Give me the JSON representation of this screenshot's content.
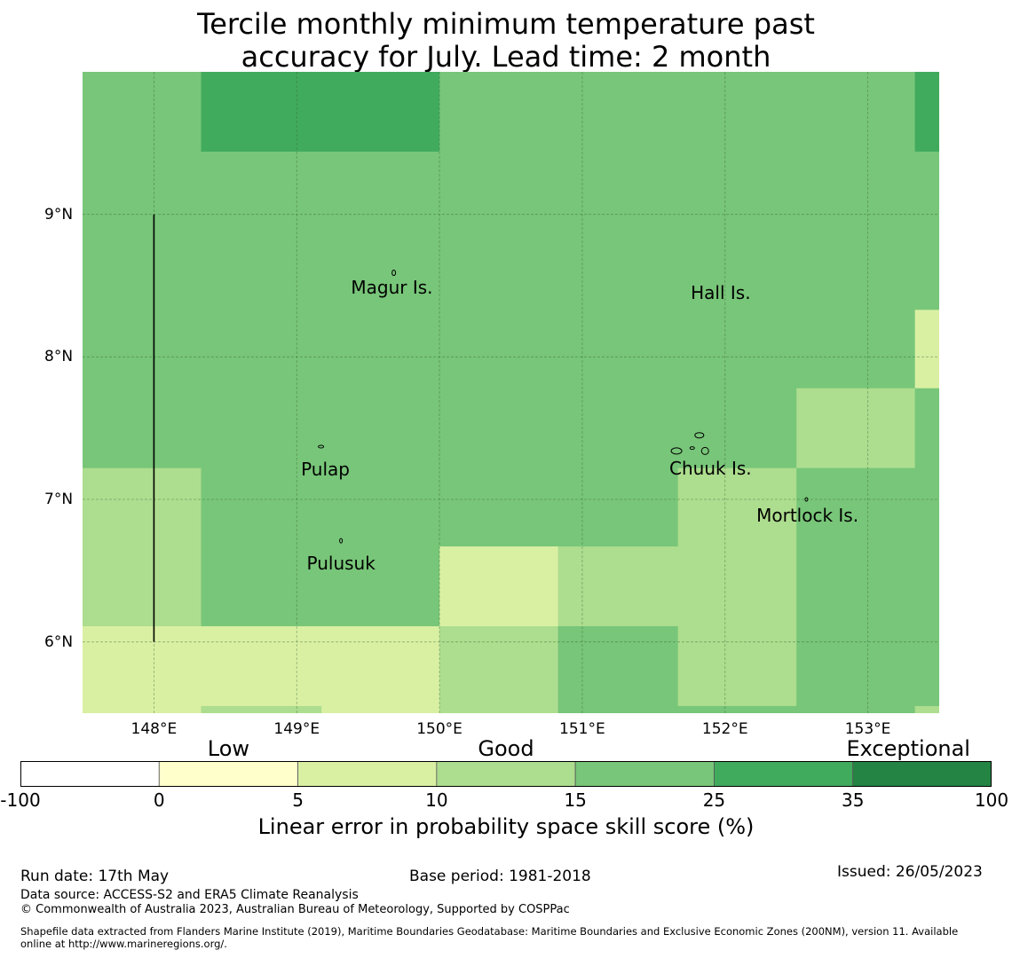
{
  "title": {
    "line1": "Tercile monthly minimum temperature past",
    "line2": "accuracy for July. Lead time: 2 month"
  },
  "map": {
    "lon_range": [
      147.5,
      153.5
    ],
    "lat_range": [
      5.5,
      10.0
    ],
    "lat_ticks": [
      {
        "value": 9,
        "label": "9°N"
      },
      {
        "value": 8,
        "label": "8°N"
      },
      {
        "value": 7,
        "label": "7°N"
      },
      {
        "value": 6,
        "label": "6°N"
      }
    ],
    "lon_ticks": [
      {
        "value": 148,
        "label": "148°E"
      },
      {
        "value": 149,
        "label": "149°E"
      },
      {
        "value": 150,
        "label": "150°E"
      },
      {
        "value": 151,
        "label": "151°E"
      },
      {
        "value": 152,
        "label": "152°E"
      },
      {
        "value": 153,
        "label": "153°E"
      }
    ],
    "grid": true,
    "cells": [
      {
        "lon": [
          147.5,
          148.33
        ],
        "lat": [
          9.44,
          10.0
        ],
        "skill_class": "15-25"
      },
      {
        "lon": [
          148.33,
          150.0
        ],
        "lat": [
          9.44,
          10.0
        ],
        "skill_class": "25-35"
      },
      {
        "lon": [
          150.0,
          153.33
        ],
        "lat": [
          9.44,
          10.0
        ],
        "skill_class": "15-25"
      },
      {
        "lon": [
          153.33,
          153.5
        ],
        "lat": [
          9.44,
          10.0
        ],
        "skill_class": "25-35"
      },
      {
        "lon": [
          147.5,
          153.5
        ],
        "lat": [
          8.33,
          9.44
        ],
        "skill_class": "15-25"
      },
      {
        "lon": [
          147.5,
          153.33
        ],
        "lat": [
          7.78,
          8.33
        ],
        "skill_class": "15-25"
      },
      {
        "lon": [
          153.33,
          153.5
        ],
        "lat": [
          7.78,
          8.33
        ],
        "skill_class": "5-10"
      },
      {
        "lon": [
          147.5,
          152.5
        ],
        "lat": [
          7.22,
          7.78
        ],
        "skill_class": "15-25"
      },
      {
        "lon": [
          152.5,
          153.33
        ],
        "lat": [
          7.22,
          7.78
        ],
        "skill_class": "10-15"
      },
      {
        "lon": [
          153.33,
          153.5
        ],
        "lat": [
          7.22,
          7.78
        ],
        "skill_class": "15-25"
      },
      {
        "lon": [
          147.5,
          148.33
        ],
        "lat": [
          6.11,
          7.22
        ],
        "skill_class": "10-15"
      },
      {
        "lon": [
          148.33,
          151.67
        ],
        "lat": [
          6.67,
          7.22
        ],
        "skill_class": "15-25"
      },
      {
        "lon": [
          151.67,
          152.5
        ],
        "lat": [
          6.67,
          7.22
        ],
        "skill_class": "10-15"
      },
      {
        "lon": [
          152.5,
          153.5
        ],
        "lat": [
          6.67,
          7.22
        ],
        "skill_class": "15-25"
      },
      {
        "lon": [
          148.33,
          150.0
        ],
        "lat": [
          6.11,
          6.67
        ],
        "skill_class": "15-25"
      },
      {
        "lon": [
          150.0,
          150.83
        ],
        "lat": [
          6.11,
          6.67
        ],
        "skill_class": "5-10"
      },
      {
        "lon": [
          150.83,
          152.5
        ],
        "lat": [
          6.11,
          6.67
        ],
        "skill_class": "10-15"
      },
      {
        "lon": [
          152.5,
          153.5
        ],
        "lat": [
          6.11,
          6.67
        ],
        "skill_class": "15-25"
      },
      {
        "lon": [
          147.5,
          150.0
        ],
        "lat": [
          5.5,
          6.11
        ],
        "skill_class": "5-10"
      },
      {
        "lon": [
          150.0,
          150.83
        ],
        "lat": [
          5.5,
          6.11
        ],
        "skill_class": "10-15"
      },
      {
        "lon": [
          150.83,
          151.67
        ],
        "lat": [
          5.5,
          6.11
        ],
        "skill_class": "15-25"
      },
      {
        "lon": [
          151.67,
          152.5
        ],
        "lat": [
          5.55,
          6.11
        ],
        "skill_class": "10-15"
      },
      {
        "lon": [
          151.67,
          152.5
        ],
        "lat": [
          5.5,
          5.55
        ],
        "skill_class": "15-25"
      },
      {
        "lon": [
          152.5,
          153.5
        ],
        "lat": [
          5.5,
          6.11
        ],
        "skill_class": "15-25"
      },
      {
        "lon": [
          148.33,
          149.17
        ],
        "lat": [
          5.5,
          5.55
        ],
        "skill_class": "10-15"
      },
      {
        "lon": [
          153.33,
          153.5
        ],
        "lat": [
          5.5,
          5.55
        ],
        "skill_class": "10-15"
      }
    ],
    "boundary_line": {
      "lon": 148.0,
      "lat": [
        6.0,
        9.0
      ]
    },
    "places": [
      {
        "name": "Magur Is.",
        "lon": 149.38,
        "lat": 8.49
      },
      {
        "name": "Hall Is.",
        "lon": 151.76,
        "lat": 8.45
      },
      {
        "name": "Pulap",
        "lon": 149.03,
        "lat": 7.21
      },
      {
        "name": "Chuuk Is.",
        "lon": 151.61,
        "lat": 7.22
      },
      {
        "name": "Mortlock Is.",
        "lon": 152.22,
        "lat": 6.89
      },
      {
        "name": "Pulusuk",
        "lon": 149.07,
        "lat": 6.55
      }
    ]
  },
  "colorbar": {
    "category_labels": [
      {
        "label": "Low",
        "at": 1.5
      },
      {
        "label": "Good",
        "at": 3.5
      },
      {
        "label": "Exceptional",
        "at": 6.4
      }
    ],
    "bins": [
      {
        "from": "-100",
        "to": "0",
        "color": "#ffffff"
      },
      {
        "from": "0",
        "to": "5",
        "color": "#ffffcc"
      },
      {
        "from": "5",
        "to": "10",
        "color": "#d9f0a3"
      },
      {
        "from": "10",
        "to": "15",
        "color": "#addd8e"
      },
      {
        "from": "15",
        "to": "25",
        "color": "#78c679"
      },
      {
        "from": "25",
        "to": "35",
        "color": "#41ab5d"
      },
      {
        "from": "35",
        "to": "100",
        "color": "#238443"
      }
    ],
    "tick_labels": [
      "-100",
      "0",
      "5",
      "10",
      "15",
      "25",
      "35",
      "100"
    ],
    "title": "Linear error in probability space skill score (%)"
  },
  "colors": {
    "5-10": "#d9f0a3",
    "10-15": "#addd8e",
    "15-25": "#78c679",
    "25-35": "#41ab5d"
  },
  "footer": {
    "run_date": "Run date: 17th May",
    "base_period": "Base period: 1981-2018",
    "issued": "Issued: 26/05/2023",
    "data_source": "Data source: ACCESS-S2 and ERA5 Climate Reanalysis",
    "copyright": "© Commonwealth of Australia 2023, Australian Bureau of Meteorology, Supported by COSPPac",
    "shapefile_line1": "Shapefile data extracted from Flanders Marine Institute (2019), Maritime Boundaries Geodatabase: Maritime Boundaries and Exclusive Economic Zones (200NM), version 11. Available",
    "shapefile_line2": "online at http://www.marineregions.org/."
  }
}
